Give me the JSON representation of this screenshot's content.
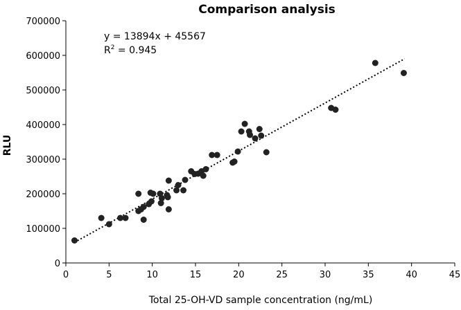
{
  "chart_data": {
    "type": "scatter",
    "title": "Comparison analysis",
    "xlabel": "Total 25-OH-VD sample concentration (ng/mL)",
    "ylabel": "RLU",
    "xlim": [
      0,
      45
    ],
    "ylim": [
      0,
      700000
    ],
    "x_ticks": [
      "0",
      "5",
      "10",
      "15",
      "20",
      "25",
      "30",
      "35",
      "40",
      "45"
    ],
    "y_ticks": [
      "0",
      "100000",
      "200000",
      "300000",
      "400000",
      "500000",
      "600000",
      "700000"
    ],
    "grid": false,
    "legend": null,
    "annotations": {
      "equation": "y = 13894x + 45567",
      "r2_prefix": "R",
      "r2_sup": "2",
      "r2_value": " = 0.945"
    },
    "trendline": {
      "slope": 13894,
      "intercept": 45567,
      "x_range": [
        1,
        39.2
      ],
      "style": "dotted"
    },
    "series": [
      {
        "x": [
          1.0,
          4.1,
          5.0,
          6.3,
          6.9,
          8.4,
          8.4,
          8.7,
          9.0,
          9.0,
          9.6,
          9.8,
          9.9,
          10.1,
          10.9,
          11.0,
          11.1,
          11.7,
          11.9,
          11.9,
          11.8,
          12.8,
          13.0,
          13.6,
          13.8,
          14.5,
          14.9,
          15.3,
          15.7,
          15.9,
          16.2,
          16.9,
          17.5,
          19.3,
          19.5,
          19.9,
          20.3,
          20.7,
          21.2,
          21.3,
          21.9,
          22.4,
          22.6,
          23.2,
          30.7,
          31.2,
          35.8,
          39.1
        ],
        "y": [
          65000,
          130000,
          112000,
          130000,
          130000,
          150000,
          200000,
          155000,
          125000,
          162000,
          170000,
          203000,
          178000,
          200000,
          200000,
          173000,
          187000,
          196000,
          155000,
          238000,
          190000,
          210000,
          225000,
          210000,
          240000,
          265000,
          257000,
          258000,
          265000,
          252000,
          271000,
          312000,
          312000,
          290000,
          293000,
          322000,
          380000,
          402000,
          380000,
          370000,
          360000,
          387000,
          368000,
          320000,
          448000,
          443000,
          578000,
          549000
        ]
      }
    ]
  }
}
